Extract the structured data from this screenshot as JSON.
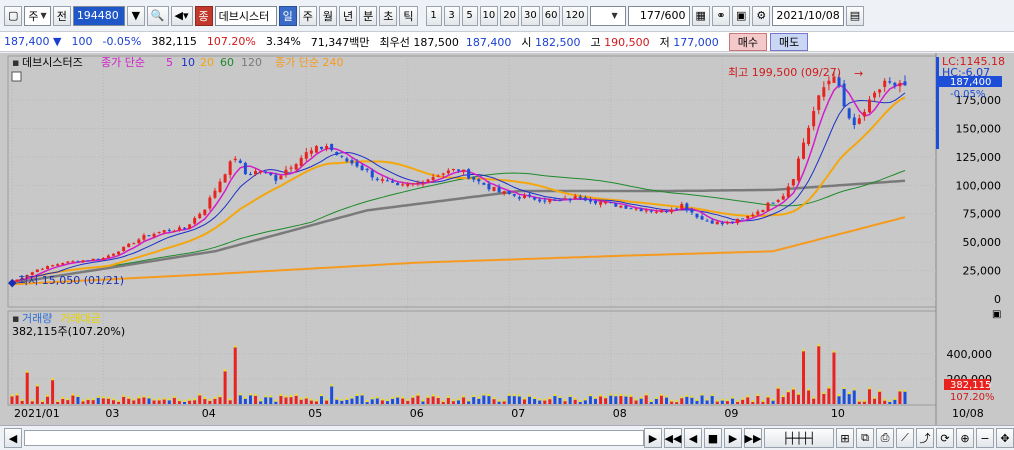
{
  "toolbar": {
    "market": "주",
    "period_type": "전",
    "stock_code": "194480",
    "stock_name": "데브시스터",
    "timeframes": [
      "일",
      "주",
      "월",
      "년",
      "분",
      "초",
      "틱"
    ],
    "minute_steps": [
      "1",
      "3",
      "5",
      "10",
      "20",
      "30",
      "60",
      "120"
    ],
    "range_value": "177",
    "range_total": "/600",
    "date": "2021/10/08",
    "name_badge": "종"
  },
  "quote": {
    "price": "187,400",
    "change": "100",
    "change_pct": "-0.05%",
    "volume": "382,115",
    "volume_pct": "107.20%",
    "turnover_pct": "3.34%",
    "amount": "71,347백만",
    "best_offer_label": "최우선",
    "best_ask": "187,500",
    "best_bid": "187,400",
    "open_label": "시",
    "open": "182,500",
    "high_label": "고",
    "high": "190,500",
    "low_label": "저",
    "low": "177,000",
    "buy_label": "매수",
    "sell_label": "매도"
  },
  "legend": {
    "name": "데브시스터즈",
    "ma_label": "종가 단순",
    "ma_periods": [
      "5",
      "10",
      "20",
      "60",
      "120"
    ],
    "ma_long_label": "종가 단순 240",
    "volume_label": "거래량",
    "amount_label": "거래대금",
    "volume_readout": "382,115주(107.20%)"
  },
  "annotations": {
    "high_note": "최고 199,500 (09/27)",
    "low_note": "최저 15,050 (01/21)",
    "lc_readout": "LC:1145.18",
    "hc_readout": "HC:-6.07",
    "price_tag": "187,400",
    "pct_tag": "-0.05%",
    "vol_tag": "382,115",
    "vol_pct_tag": "107.20%"
  },
  "colors": {
    "up": "#e8231f",
    "down": "#1d4ed8",
    "ma5": "#d21ec8",
    "ma10": "#1d2fc8",
    "ma20": "#f4a70c",
    "ma60": "#1f8a2a",
    "ma120": "#7a7a7a",
    "ma240": "#f59a1f",
    "chart_bg": "#c8c8c8"
  },
  "chart_data": {
    "type": "line",
    "price_axis": {
      "ticks": [
        "0",
        "25,000",
        "50,000",
        "75,000",
        "100,000",
        "125,000",
        "150,000",
        "175,000"
      ],
      "ylim": [
        0,
        205000
      ]
    },
    "volume_axis": {
      "ticks": [
        "200,000",
        "400,000"
      ],
      "ylim": [
        0,
        470000
      ]
    },
    "x_labels": [
      "2021/01",
      "03",
      "04",
      "05",
      "06",
      "07",
      "08",
      "09",
      "10",
      "10/08"
    ],
    "x_label_months": [
      0,
      2,
      3,
      4,
      5,
      6,
      7,
      8,
      9
    ],
    "close_keypoints": [
      [
        0,
        15050
      ],
      [
        2,
        19000
      ],
      [
        5,
        26000
      ],
      [
        10,
        32000
      ],
      [
        14,
        34000
      ],
      [
        18,
        36000
      ],
      [
        22,
        45000
      ],
      [
        26,
        55000
      ],
      [
        30,
        60000
      ],
      [
        34,
        62000
      ],
      [
        38,
        80000
      ],
      [
        42,
        112000
      ],
      [
        44,
        125000
      ],
      [
        46,
        110000
      ],
      [
        49,
        113000
      ],
      [
        52,
        106000
      ],
      [
        55,
        118000
      ],
      [
        58,
        128000
      ],
      [
        62,
        135000
      ],
      [
        65,
        123000
      ],
      [
        68,
        118000
      ],
      [
        72,
        106000
      ],
      [
        76,
        98000
      ],
      [
        80,
        102000
      ],
      [
        84,
        110000
      ],
      [
        88,
        114000
      ],
      [
        92,
        103000
      ],
      [
        96,
        94000
      ],
      [
        100,
        90000
      ],
      [
        104,
        88000
      ],
      [
        108,
        86000
      ],
      [
        112,
        90000
      ],
      [
        116,
        85000
      ],
      [
        120,
        82000
      ],
      [
        124,
        79000
      ],
      [
        128,
        77000
      ],
      [
        132,
        83000
      ],
      [
        136,
        70000
      ],
      [
        140,
        66000
      ],
      [
        144,
        70000
      ],
      [
        148,
        80000
      ],
      [
        152,
        92000
      ],
      [
        154,
        108000
      ],
      [
        156,
        138000
      ],
      [
        158,
        165000
      ],
      [
        160,
        186000
      ],
      [
        162,
        199500
      ],
      [
        164,
        168000
      ],
      [
        166,
        150000
      ],
      [
        168,
        165000
      ],
      [
        170,
        178000
      ],
      [
        172,
        192000
      ],
      [
        174,
        185000
      ],
      [
        176,
        187400
      ]
    ],
    "ma_long_keypoints": [
      [
        0,
        13000
      ],
      [
        40,
        22000
      ],
      [
        80,
        32000
      ],
      [
        120,
        38000
      ],
      [
        150,
        42000
      ],
      [
        176,
        72000
      ]
    ],
    "ma_mid_keypoints": [
      [
        0,
        14000
      ],
      [
        40,
        42000
      ],
      [
        70,
        78000
      ],
      [
        100,
        95000
      ],
      [
        130,
        95000
      ],
      [
        150,
        96000
      ],
      [
        176,
        104000
      ]
    ],
    "volume_spikes": [
      [
        3,
        250000
      ],
      [
        5,
        140000
      ],
      [
        8,
        190000
      ],
      [
        42,
        260000
      ],
      [
        44,
        450000
      ],
      [
        63,
        140000
      ],
      [
        156,
        420000
      ],
      [
        159,
        460000
      ],
      [
        162,
        410000
      ]
    ]
  }
}
